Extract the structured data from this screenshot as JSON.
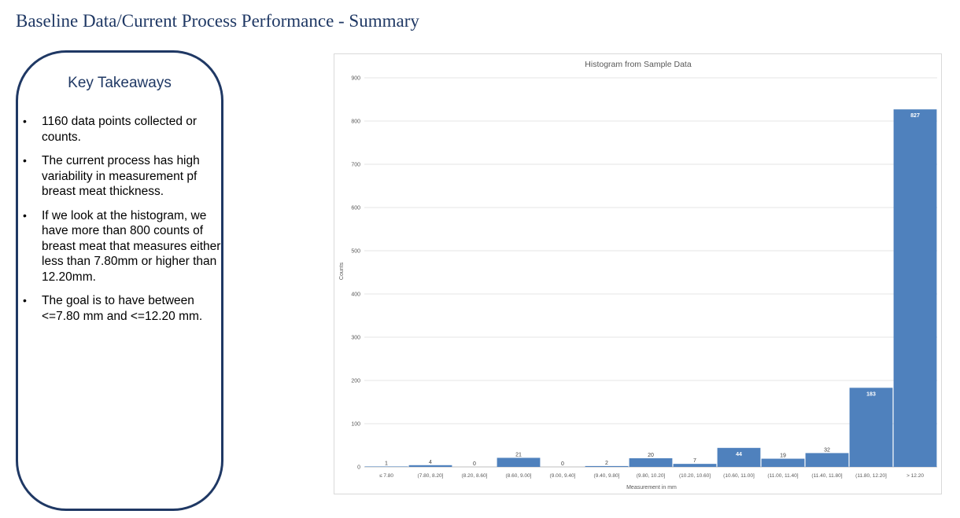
{
  "page": {
    "title": "Baseline Data/Current Process Performance - Summary"
  },
  "takeaways": {
    "heading": "Key Takeaways",
    "items": [
      "1160 data points collected or counts.",
      "The current process has high variability in measurement pf breast meat thickness.",
      "If we look at the histogram, we have more than 800 counts of breast meat that measures either less than 7.80mm or higher than 12.20mm.",
      "The goal is to have between <=7.80 mm and <=12.20 mm."
    ]
  },
  "colors": {
    "title": "#1f3864",
    "bar": "#4f81bd",
    "gridline": "#e6e6e6",
    "axis_text": "#595959"
  },
  "chart_data": {
    "type": "bar",
    "title": "Histogram from Sample Data",
    "xlabel": "Measurement in mm",
    "ylabel": "Counts",
    "ylim": [
      0,
      900
    ],
    "yticks": [
      0,
      100,
      200,
      300,
      400,
      500,
      600,
      700,
      800,
      900
    ],
    "grid": true,
    "categories": [
      "≤ 7.80",
      "(7.80, 8.20]",
      "(8.20, 8.60]",
      "(8.60, 9.00]",
      "(9.00, 9.40]",
      "(9.40, 9.80]",
      "(9.80, 10.20]",
      "(10.20, 10.60]",
      "(10.60, 11.00]",
      "(11.00, 11.40]",
      "(11.40, 11.80]",
      "(11.80, 12.20]",
      "> 12.20"
    ],
    "values": [
      1,
      4,
      0,
      21,
      0,
      2,
      20,
      7,
      44,
      19,
      32,
      183,
      827
    ]
  }
}
